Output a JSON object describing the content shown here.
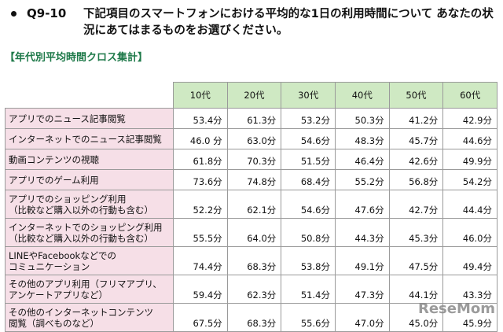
{
  "question": {
    "number": "Q9-10",
    "text": "下記項目のスマートフォンにおける平均的な1日の利用時間について あなたの状況にあてはまるものをお選びください。"
  },
  "subtitle": "【年代別平均時間クロス集計】",
  "table": {
    "headers": [
      "10代",
      "20代",
      "30代",
      "40代",
      "50代",
      "60代"
    ],
    "rows": [
      {
        "label": [
          "アプリでのニュース記事閲覧"
        ],
        "values": [
          "53.4分",
          "61.3分",
          "53.2分",
          "50.3分",
          "41.2分",
          "42.9分"
        ]
      },
      {
        "label": [
          "インターネットでのニュース記事閲覧"
        ],
        "values": [
          "46.0 分",
          "63.0分",
          "54.6分",
          "48.3分",
          "45.7分",
          "44.6分"
        ]
      },
      {
        "label": [
          "動画コンテンツの視聴"
        ],
        "values": [
          "61.8分",
          "70.3分",
          "51.5分",
          "46.4分",
          "42.6分",
          "49.9分"
        ]
      },
      {
        "label": [
          "アプリでのゲーム利用"
        ],
        "values": [
          "73.6分",
          "74.8分",
          "68.4分",
          "55.2分",
          "56.8分",
          "54.2分"
        ]
      },
      {
        "label": [
          "アプリでのショッピング利用",
          "（比較など購入以外の行動も含む）"
        ],
        "values": [
          "52.2分",
          "62.1分",
          "54.6分",
          "47.6分",
          "42.7分",
          "44.4分"
        ]
      },
      {
        "label": [
          "インターネットでのショッピング利用",
          "（比較など購入以外の行動も含む）"
        ],
        "values": [
          "55.5分",
          "64.0分",
          "50.8分",
          "44.3分",
          "45.3分",
          "46.0分"
        ]
      },
      {
        "label": [
          "LINEやFacebookなどでの",
          "コミュニケーション"
        ],
        "values": [
          "74.4分",
          "68.3分",
          "53.8分",
          "49.1分",
          "47.5分",
          "49.4分"
        ]
      },
      {
        "label": [
          "その他のアプリ利用（フリマアプリ、",
          "アンケートアプリなど）"
        ],
        "values": [
          "59.4分",
          "62.3分",
          "51.4分",
          "47.3分",
          "44.1分",
          "43.3分"
        ]
      },
      {
        "label": [
          "その他のインターネットコンテンツ",
          "閲覧（調べものなど）"
        ],
        "values": [
          "67.5分",
          "68.3分",
          "55.6分",
          "47.0分",
          "45.0分",
          "45.9分"
        ]
      }
    ]
  },
  "watermark": "ReseMom"
}
